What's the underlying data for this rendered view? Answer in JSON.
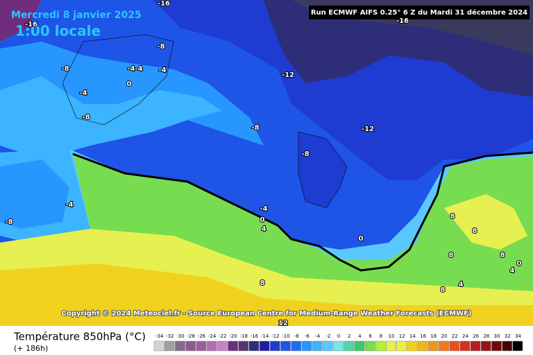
{
  "header": {
    "date": "Mercredi 8 janvier 2025",
    "time": "1:00 locale",
    "run": "Run ECMWF AIFS 0.25° 6 Z du Mardi 31 décembre 2024"
  },
  "copyright": "Copyright © 2024 Meteociel.fr - Source European Centre for Medium-Range Weather Forecasts (ECMWF)",
  "footer": {
    "title": "Température 850hPa (°C)",
    "lead": "(+ 186h)"
  },
  "contour_labels": [
    -16,
    -16,
    -16,
    -8,
    -8,
    -4,
    -4,
    -4,
    0,
    -4,
    -8,
    -12,
    -8,
    -12,
    -8,
    -4,
    -8,
    -4,
    0,
    4,
    0,
    8,
    8,
    8,
    8,
    8,
    4,
    4,
    0,
    8,
    12
  ],
  "legend": {
    "labels": [
      -34,
      -32,
      -30,
      -28,
      -26,
      -24,
      -22,
      -20,
      -18,
      -16,
      -14,
      -12,
      -10,
      -8,
      -6,
      -4,
      -2,
      0,
      2,
      4,
      6,
      8,
      10,
      12,
      14,
      16,
      18,
      20,
      22,
      24,
      26,
      28,
      30,
      32,
      34
    ],
    "colors": [
      "#d2d2d2",
      "#a0a0a0",
      "#7d6e87",
      "#8c5a8c",
      "#a05aa0",
      "#b46eb4",
      "#c882c8",
      "#6e2d7d",
      "#55376e",
      "#2d2d78",
      "#1e1ea0",
      "#1e3cd2",
      "#1e55e6",
      "#1e6ef0",
      "#2896ff",
      "#3cb4ff",
      "#5ac8ff",
      "#78e6e6",
      "#50d2aa",
      "#3cc864",
      "#78dc50",
      "#b4f03c",
      "#e6f050",
      "#f0f03c",
      "#f0d21e",
      "#f0b41e",
      "#f0961e",
      "#f0781e",
      "#e6501e",
      "#d2321e",
      "#b41e1e",
      "#961414",
      "#6e0a0a",
      "#460505",
      "#000000"
    ]
  }
}
